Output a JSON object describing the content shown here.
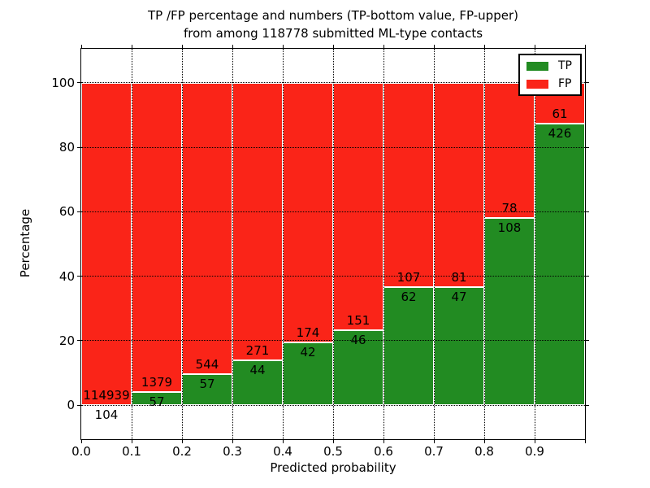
{
  "figure": {
    "title_line1": "TP /FP percentage and numbers (TP-bottom value, FP-upper)",
    "title_line2": "from among 118778 submitted ML-type contacts",
    "xlabel": "Predicted probability",
    "ylabel": "Percentage"
  },
  "legend": {
    "position": "upper right",
    "items": [
      {
        "label": "TP",
        "color": "#228B22"
      },
      {
        "label": "FP",
        "color": "#FA2418"
      }
    ]
  },
  "chart_data": {
    "type": "bar",
    "stacked": true,
    "normalized_to_percent_per_bin": true,
    "title": "TP /FP percentage and numbers (TP-bottom value, FP-upper) from among 118778 submitted ML-type contacts",
    "xlabel": "Predicted probability",
    "ylabel": "Percentage",
    "total_contacts": 118778,
    "bin_edges": [
      0.0,
      0.1,
      0.2,
      0.3,
      0.4,
      0.5,
      0.6,
      0.7,
      0.8,
      0.9,
      1.0
    ],
    "xtick_labels": [
      "0.0",
      "0.1",
      "0.2",
      "0.3",
      "0.4",
      "0.5",
      "0.6",
      "0.7",
      "0.8",
      "0.9"
    ],
    "yticks": [
      0,
      20,
      40,
      60,
      80,
      100
    ],
    "xlim": [
      0.0,
      1.0
    ],
    "ylim": [
      -10.6,
      110.6
    ],
    "grid": true,
    "grid_style": "dotted",
    "bar_edge_color": "#ffffff",
    "legend_position": "upper right",
    "series": [
      {
        "name": "TP",
        "color": "#228B22",
        "counts": [
          104,
          57,
          57,
          44,
          42,
          46,
          62,
          47,
          108,
          426
        ]
      },
      {
        "name": "FP",
        "color": "#FA2418",
        "counts": [
          114939,
          1379,
          544,
          271,
          174,
          151,
          107,
          81,
          78,
          61
        ]
      }
    ],
    "tp_percent_by_bin": [
      0.09,
      3.97,
      9.48,
      13.97,
      19.44,
      23.35,
      36.69,
      36.72,
      58.06,
      87.47
    ]
  }
}
